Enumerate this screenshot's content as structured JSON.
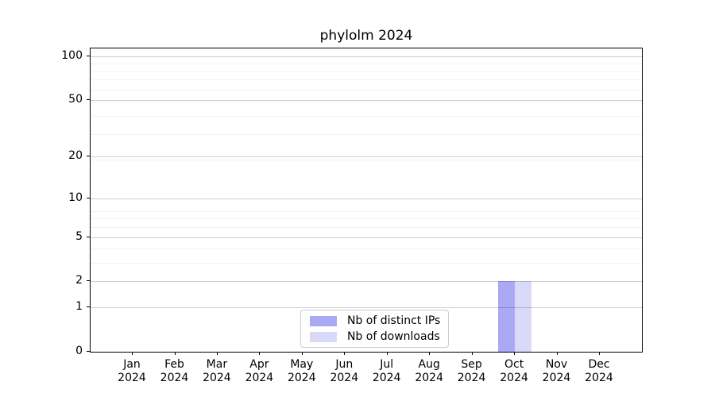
{
  "chart_data": {
    "type": "bar",
    "title": "phylolm 2024",
    "xlabel": "",
    "ylabel": "",
    "y_scale": "log1p",
    "ylim": [
      0,
      113
    ],
    "grid": "on",
    "grid_major_color": "rgba(0,0,0,0.19)",
    "grid_minor_color": "rgba(0,0,0,0.05)",
    "y_major_ticks": [
      0,
      1,
      2,
      5,
      10,
      20,
      50,
      100
    ],
    "y_major_tick_labels": [
      "0",
      "1",
      "2",
      "5",
      "10",
      "20",
      "50",
      "100"
    ],
    "y_minor_ticks": [
      3,
      4,
      6,
      7,
      8,
      19,
      29,
      39,
      49,
      59,
      69,
      79,
      89
    ],
    "categories": [
      {
        "month": "Jan",
        "year": "2024"
      },
      {
        "month": "Feb",
        "year": "2024"
      },
      {
        "month": "Mar",
        "year": "2024"
      },
      {
        "month": "Apr",
        "year": "2024"
      },
      {
        "month": "May",
        "year": "2024"
      },
      {
        "month": "Jun",
        "year": "2024"
      },
      {
        "month": "Jul",
        "year": "2024"
      },
      {
        "month": "Aug",
        "year": "2024"
      },
      {
        "month": "Sep",
        "year": "2024"
      },
      {
        "month": "Oct",
        "year": "2024"
      },
      {
        "month": "Nov",
        "year": "2024"
      },
      {
        "month": "Dec",
        "year": "2024"
      }
    ],
    "series": [
      {
        "name": "Nb of distinct IPs",
        "color": "#a9a9f6",
        "values": [
          0,
          0,
          0,
          0,
          0,
          0,
          0,
          0,
          0,
          2,
          0,
          0
        ]
      },
      {
        "name": "Nb of downloads",
        "color": "#d9d9f8",
        "values": [
          0,
          0,
          0,
          0,
          0,
          0,
          0,
          0,
          0,
          2,
          0,
          0
        ]
      }
    ],
    "legend_position": "bottom-center"
  }
}
